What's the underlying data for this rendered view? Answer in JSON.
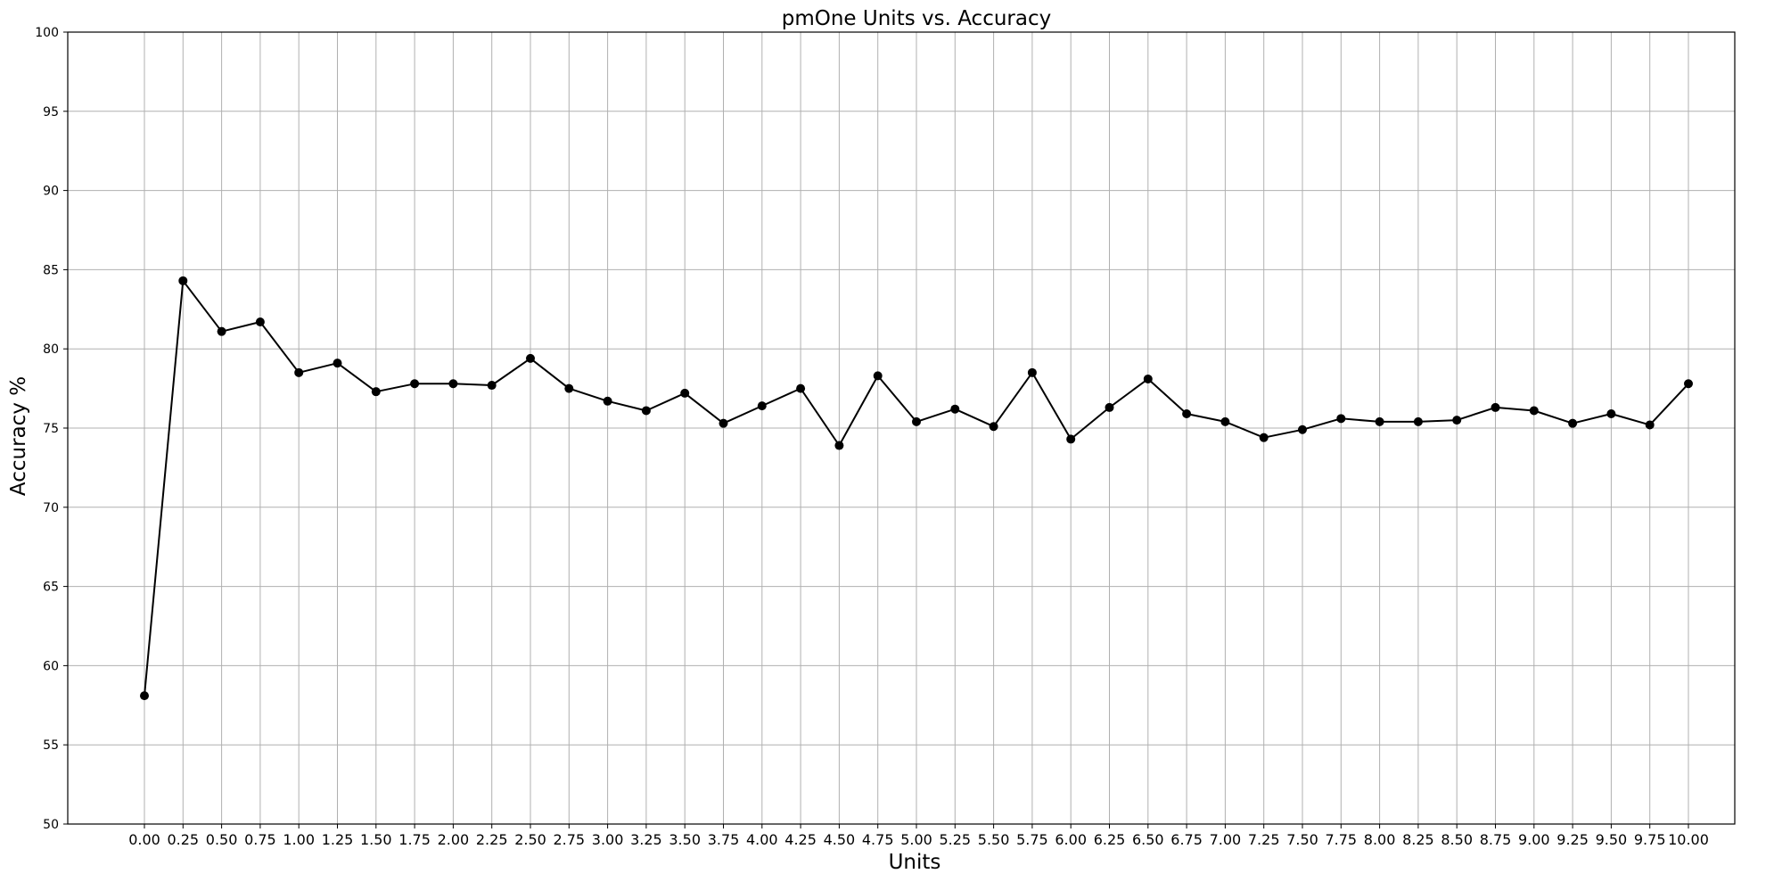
{
  "chart_data": {
    "type": "line",
    "title": "pmOne Units vs. Accuracy",
    "xlabel": "Units",
    "ylabel": "Accuracy %",
    "ylim": [
      50,
      100
    ],
    "yticks": [
      50,
      55,
      60,
      65,
      70,
      75,
      80,
      85,
      90,
      95,
      100
    ],
    "grid": true,
    "line_color": "#000000",
    "grid_color": "#b0b0b0",
    "categories": [
      "0.00",
      "0.25",
      "0.50",
      "0.75",
      "1.00",
      "1.25",
      "1.50",
      "1.75",
      "2.00",
      "2.25",
      "2.50",
      "2.75",
      "3.00",
      "3.25",
      "3.50",
      "3.75",
      "4.00",
      "4.25",
      "4.50",
      "4.75",
      "5.00",
      "5.25",
      "5.50",
      "5.75",
      "6.00",
      "6.25",
      "6.50",
      "6.75",
      "7.00",
      "7.25",
      "7.50",
      "7.75",
      "8.00",
      "8.25",
      "8.50",
      "8.75",
      "9.00",
      "9.25",
      "9.50",
      "9.75",
      "10.00"
    ],
    "series": [
      {
        "values": [
          58.1,
          84.3,
          81.1,
          81.7,
          78.5,
          79.1,
          77.3,
          77.8,
          77.8,
          77.7,
          79.4,
          77.5,
          76.7,
          76.1,
          77.2,
          75.3,
          76.4,
          77.5,
          73.9,
          78.3,
          75.4,
          76.2,
          75.1,
          78.5,
          74.3,
          76.3,
          78.1,
          75.9,
          75.4,
          74.4,
          74.9,
          75.6,
          75.4,
          75.4,
          75.5,
          76.3,
          76.1,
          75.3,
          75.9,
          75.2,
          77.8
        ]
      }
    ]
  }
}
